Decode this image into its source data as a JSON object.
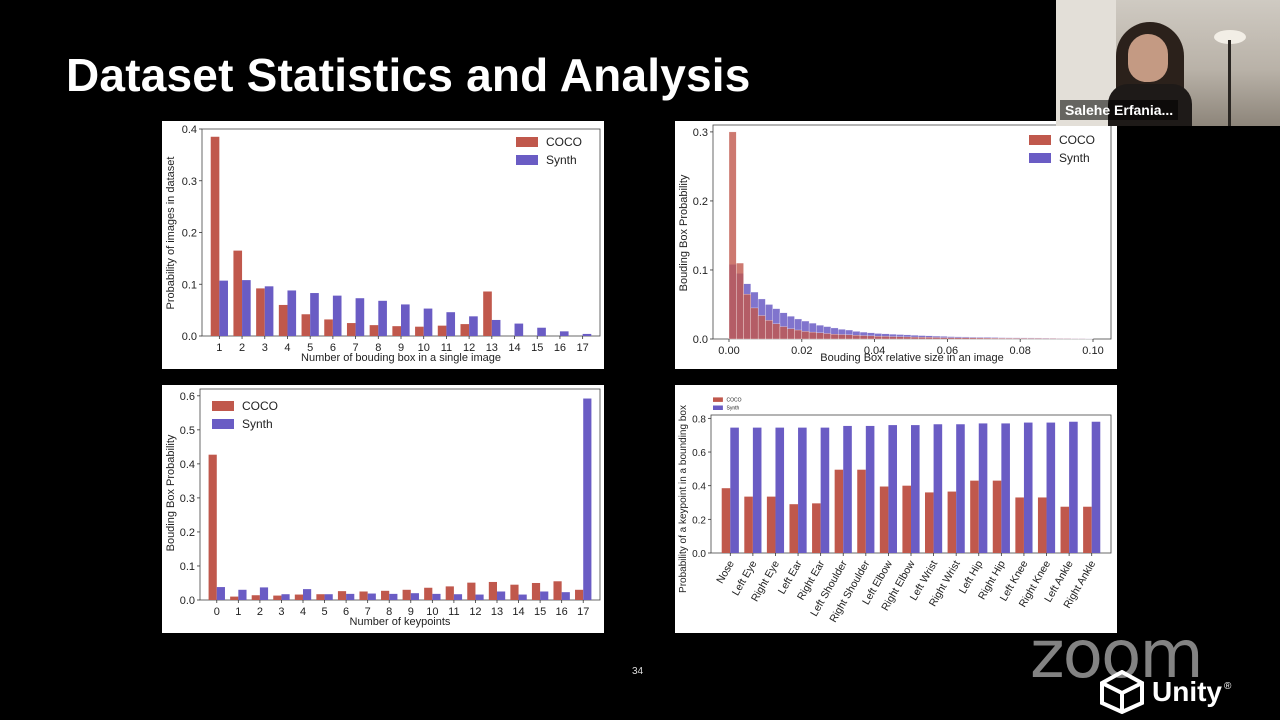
{
  "slide": {
    "title": "Dataset Statistics and Analysis",
    "page_number": "34"
  },
  "video": {
    "participant_name": "Salehe Erfania..."
  },
  "watermarks": {
    "zoom": "zoom",
    "unity": "Unity",
    "registered": "®"
  },
  "colors": {
    "coco": "#c0584c",
    "synth": "#6a5cc4",
    "background": "#000000",
    "panel": "#ffffff"
  },
  "chart_data": [
    {
      "type": "bar",
      "xlabel": "Number of bouding box in a single image",
      "ylabel": "Probability of images in dataset",
      "categories": [
        "1",
        "2",
        "3",
        "4",
        "5",
        "6",
        "7",
        "8",
        "9",
        "10",
        "11",
        "12",
        "13",
        "14",
        "15",
        "16",
        "17"
      ],
      "series": [
        {
          "name": "COCO",
          "values": [
            0.385,
            0.165,
            0.092,
            0.06,
            0.042,
            0.032,
            0.025,
            0.021,
            0.019,
            0.018,
            0.02,
            0.023,
            0.086,
            0,
            0,
            0,
            0
          ]
        },
        {
          "name": "Synth",
          "values": [
            0.107,
            0.108,
            0.096,
            0.088,
            0.083,
            0.078,
            0.073,
            0.068,
            0.061,
            0.053,
            0.046,
            0.038,
            0.031,
            0.024,
            0.016,
            0.009,
            0.004
          ]
        }
      ],
      "ylim": [
        0,
        0.4
      ],
      "yticks": [
        "0.0",
        "0.1",
        "0.2",
        "0.3",
        "0.4"
      ],
      "legend": "top-right",
      "grid": false
    },
    {
      "type": "bar",
      "xlabel": "Bouding Box relative size in an image",
      "ylabel": "Bouding Box Probability",
      "x_range": [
        0,
        0.1
      ],
      "bin_width": 0.002,
      "xticks": [
        "0.00",
        "0.02",
        "0.04",
        "0.06",
        "0.08",
        "0.10"
      ],
      "series": [
        {
          "name": "COCO",
          "values": [
            0.3,
            0.11,
            0.065,
            0.045,
            0.034,
            0.027,
            0.022,
            0.018,
            0.015,
            0.013,
            0.011,
            0.01,
            0.009,
            0.008,
            0.007,
            0.0065,
            0.006,
            0.0055,
            0.005,
            0.0045,
            0.004,
            0.0038,
            0.0035,
            0.0033,
            0.003,
            0.0028,
            0.0026,
            0.0024,
            0.0022,
            0.002,
            0.0019,
            0.0018,
            0.0017,
            0.0016,
            0.0015,
            0.0014,
            0.0013,
            0.0012,
            0.0011,
            0.001,
            0.001,
            0.0009,
            0.0009,
            0.0008,
            0.0008,
            0.0007,
            0.0007,
            0.0006,
            0.0006,
            0.0005
          ]
        },
        {
          "name": "Synth",
          "values": [
            0.108,
            0.095,
            0.08,
            0.068,
            0.058,
            0.05,
            0.044,
            0.038,
            0.033,
            0.029,
            0.026,
            0.023,
            0.02,
            0.018,
            0.016,
            0.014,
            0.013,
            0.011,
            0.01,
            0.009,
            0.008,
            0.0075,
            0.007,
            0.0065,
            0.006,
            0.0055,
            0.005,
            0.0046,
            0.0042,
            0.0038,
            0.0035,
            0.0032,
            0.003,
            0.0028,
            0.0026,
            0.0024,
            0.0022,
            0.002,
            0.0019,
            0.0018,
            0.0017,
            0.0016,
            0.0015,
            0.0014,
            0.0013,
            0.0012,
            0.0011,
            0.001,
            0.001,
            0.0009
          ]
        }
      ],
      "ylim": [
        0,
        0.31
      ],
      "yticks": [
        "0.0",
        "0.1",
        "0.2",
        "0.3"
      ],
      "legend": "top-right",
      "grid": false
    },
    {
      "type": "bar",
      "xlabel": "Number of keypoints",
      "ylabel": "Bouding Box Probability",
      "categories": [
        "0",
        "1",
        "2",
        "3",
        "4",
        "5",
        "6",
        "7",
        "8",
        "9",
        "10",
        "11",
        "12",
        "13",
        "14",
        "15",
        "16",
        "17"
      ],
      "series": [
        {
          "name": "COCO",
          "values": [
            0.427,
            0.01,
            0.014,
            0.013,
            0.016,
            0.017,
            0.026,
            0.025,
            0.027,
            0.03,
            0.036,
            0.04,
            0.051,
            0.053,
            0.045,
            0.05,
            0.055,
            0.03
          ]
        },
        {
          "name": "Synth",
          "values": [
            0.038,
            0.03,
            0.037,
            0.017,
            0.032,
            0.017,
            0.018,
            0.019,
            0.018,
            0.02,
            0.018,
            0.017,
            0.016,
            0.025,
            0.016,
            0.025,
            0.023,
            0.592
          ]
        }
      ],
      "ylim": [
        0,
        0.62
      ],
      "yticks": [
        "0.0",
        "0.1",
        "0.2",
        "0.3",
        "0.4",
        "0.5",
        "0.6"
      ],
      "legend": "top-left",
      "grid": false
    },
    {
      "type": "bar",
      "xlabel": "",
      "ylabel": "Probability of a keypoint in a bounding box",
      "categories": [
        "Nose",
        "Left Eye",
        "Right Eye",
        "Left Ear",
        "Right Ear",
        "Left Shoulder",
        "Right Shoulder",
        "Left Elbow",
        "Right Elbow",
        "Left Wrist",
        "Right Wrist",
        "Left Hip",
        "Right Hip",
        "Left Knee",
        "Right Knee",
        "Left Ankle",
        "Right Ankle"
      ],
      "series": [
        {
          "name": "COCO",
          "values": [
            0.385,
            0.335,
            0.335,
            0.29,
            0.295,
            0.495,
            0.495,
            0.395,
            0.4,
            0.36,
            0.365,
            0.43,
            0.43,
            0.33,
            0.33,
            0.275,
            0.275
          ]
        },
        {
          "name": "Synth",
          "values": [
            0.745,
            0.745,
            0.745,
            0.745,
            0.745,
            0.755,
            0.755,
            0.76,
            0.76,
            0.765,
            0.765,
            0.77,
            0.77,
            0.775,
            0.775,
            0.78,
            0.78
          ]
        }
      ],
      "ylim": [
        0,
        0.82
      ],
      "yticks": [
        "0.0",
        "0.2",
        "0.4",
        "0.6",
        "0.8"
      ],
      "legend": "top-left",
      "grid": false
    }
  ]
}
